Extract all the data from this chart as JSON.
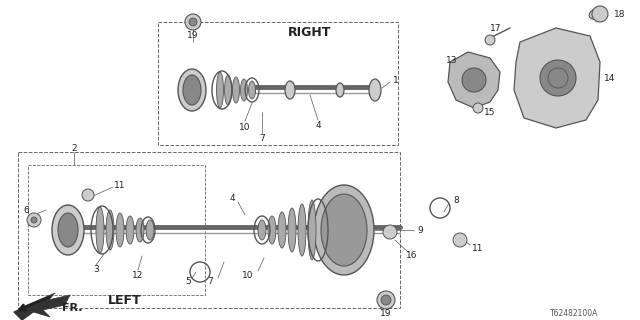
{
  "background_color": "#ffffff",
  "image_code": "T62482100A",
  "right_label": "RIGHT",
  "left_label": "LEFT",
  "fr_label": "FR.",
  "line_color": "#333333",
  "part_color_dark": "#555555",
  "part_color_mid": "#888888",
  "part_color_light": "#cccccc"
}
